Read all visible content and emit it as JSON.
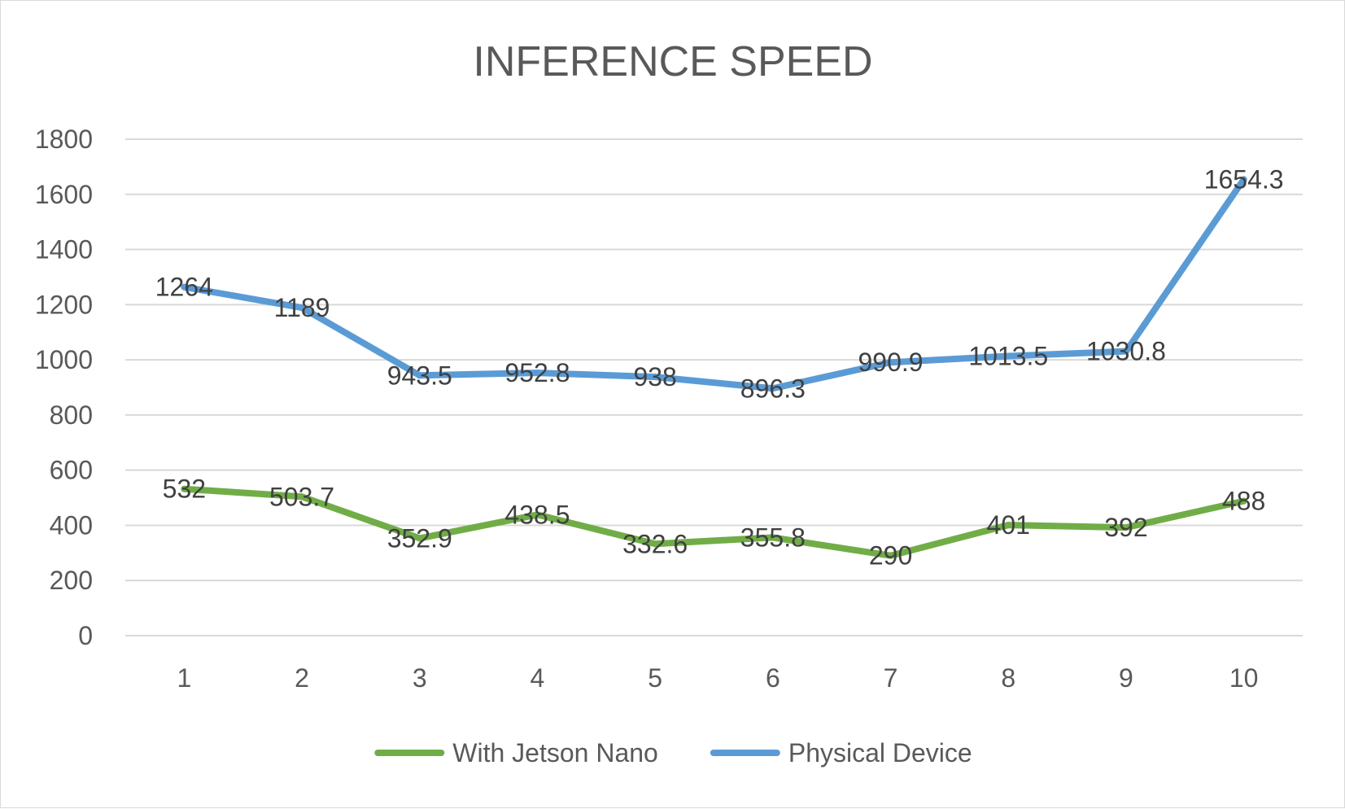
{
  "chart_data": {
    "type": "line",
    "title": "INFERENCE SPEED",
    "xlabel": "",
    "ylabel": "",
    "categories": [
      "1",
      "2",
      "3",
      "4",
      "5",
      "6",
      "7",
      "8",
      "9",
      "10"
    ],
    "ylim": [
      0,
      1800
    ],
    "yticks": [
      0,
      200,
      400,
      600,
      800,
      1000,
      1200,
      1400,
      1600,
      1800
    ],
    "grid": true,
    "legend_position": "bottom",
    "series": [
      {
        "name": "With Jetson Nano",
        "color": "#70ad47",
        "values": [
          532,
          503.7,
          352.9,
          438.5,
          332.6,
          355.8,
          290,
          401,
          392,
          488
        ],
        "labels": [
          "532",
          "503.7",
          "352.9",
          "438.5",
          "332.6",
          "355.8",
          "290",
          "401",
          "392",
          "488"
        ]
      },
      {
        "name": "Physical Device",
        "color": "#5b9bd5",
        "values": [
          1264,
          1189,
          943.5,
          952.8,
          938,
          896.3,
          990.9,
          1013.5,
          1030.8,
          1654.3
        ],
        "labels": [
          "1264",
          "1189",
          "943.5",
          "952.8",
          "938",
          "896.3",
          "990.9",
          "1013.5",
          "1030.8",
          "1654.3"
        ]
      }
    ]
  }
}
